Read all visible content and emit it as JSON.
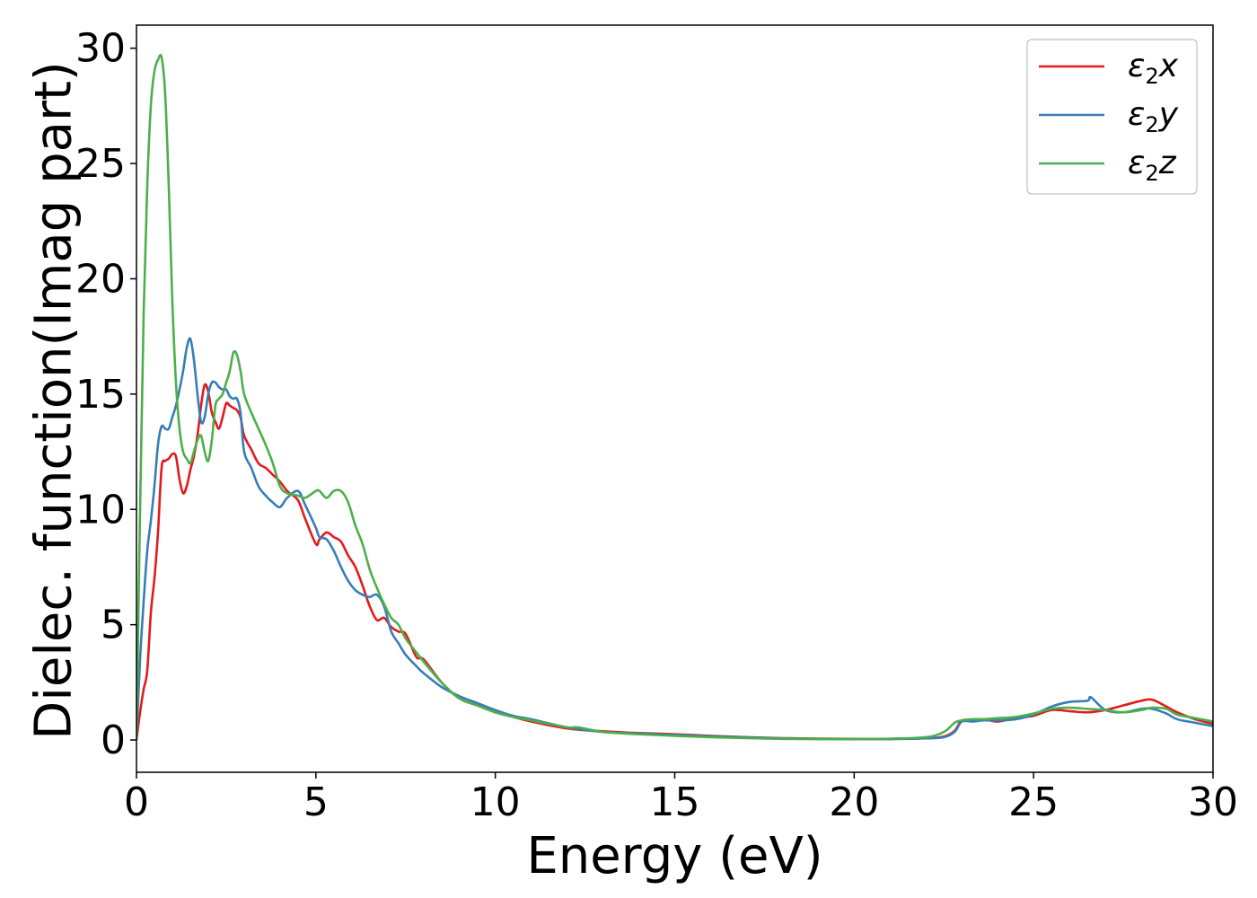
{
  "chart_data": {
    "type": "line",
    "title": "",
    "xlabel": "Energy (eV)",
    "ylabel": "Dielec. function(Imag part)",
    "xlim": [
      0,
      30
    ],
    "ylim": [
      -1.4,
      31
    ],
    "xticks": [
      "0",
      "5",
      "10",
      "15",
      "20",
      "25",
      "30"
    ],
    "yticks": [
      "0",
      "5",
      "10",
      "15",
      "20",
      "25",
      "30"
    ],
    "grid": false,
    "legend_position": "top-right",
    "series": [
      {
        "name": "ε₂x",
        "legend_base": "ε",
        "legend_sub": "2",
        "legend_var": "x",
        "color": "#e41a1c",
        "x": [
          0,
          0.1,
          0.2,
          0.3,
          0.4,
          0.5,
          0.6,
          0.7,
          0.8,
          0.9,
          1.0,
          1.1,
          1.2,
          1.3,
          1.4,
          1.5,
          1.6,
          1.7,
          1.8,
          1.9,
          2.0,
          2.1,
          2.2,
          2.3,
          2.4,
          2.5,
          2.6,
          2.7,
          2.8,
          2.9,
          3.0,
          3.2,
          3.4,
          3.6,
          3.8,
          4.0,
          4.2,
          4.5,
          4.7,
          5.0,
          5.1,
          5.3,
          5.5,
          5.7,
          5.9,
          6.1,
          6.3,
          6.5,
          6.7,
          6.9,
          7.1,
          7.3,
          7.5,
          7.8,
          8.0,
          8.5,
          9.0,
          9.5,
          10,
          10.5,
          11,
          12,
          13,
          14,
          15,
          16,
          17,
          18,
          19,
          20,
          21,
          22,
          22.5,
          22.8,
          23,
          23.3,
          23.6,
          24,
          24.5,
          25,
          25.5,
          26,
          26.5,
          27,
          27.5,
          28,
          28.3,
          28.7,
          29,
          29.5,
          30
        ],
        "y": [
          0,
          1.2,
          2.2,
          3.0,
          5.5,
          7.0,
          9.0,
          11.8,
          12.1,
          12.2,
          12.4,
          12.3,
          11.3,
          10.7,
          11.0,
          11.7,
          12.3,
          13.2,
          14.5,
          15.4,
          15.1,
          14.2,
          13.8,
          13.5,
          14.0,
          14.6,
          14.5,
          14.4,
          14.3,
          14.0,
          13.2,
          12.6,
          12.0,
          11.8,
          11.5,
          11.2,
          10.8,
          10.4,
          9.6,
          8.5,
          8.7,
          9.0,
          8.8,
          8.6,
          8.0,
          7.5,
          6.7,
          5.8,
          5.2,
          5.3,
          4.9,
          4.7,
          4.6,
          3.6,
          3.5,
          2.5,
          1.8,
          1.5,
          1.2,
          1.0,
          0.8,
          0.5,
          0.38,
          0.3,
          0.25,
          0.18,
          0.12,
          0.08,
          0.06,
          0.05,
          0.05,
          0.08,
          0.15,
          0.4,
          0.85,
          0.85,
          0.9,
          0.8,
          0.95,
          1.05,
          1.3,
          1.25,
          1.2,
          1.3,
          1.5,
          1.7,
          1.75,
          1.45,
          1.2,
          0.9,
          0.7
        ]
      },
      {
        "name": "ε₂y",
        "legend_base": "ε",
        "legend_sub": "2",
        "legend_var": "y",
        "color": "#377eb8",
        "x": [
          0,
          0.1,
          0.2,
          0.3,
          0.4,
          0.5,
          0.6,
          0.7,
          0.8,
          0.9,
          1.0,
          1.1,
          1.2,
          1.3,
          1.4,
          1.5,
          1.6,
          1.7,
          1.8,
          1.9,
          2.0,
          2.1,
          2.2,
          2.3,
          2.4,
          2.5,
          2.6,
          2.7,
          2.8,
          2.9,
          3.0,
          3.2,
          3.4,
          3.6,
          3.8,
          4.0,
          4.2,
          4.5,
          4.7,
          5.0,
          5.1,
          5.3,
          5.5,
          5.7,
          5.9,
          6.1,
          6.3,
          6.5,
          6.7,
          6.9,
          7.1,
          7.3,
          7.5,
          7.8,
          8.0,
          8.5,
          9.0,
          9.5,
          10,
          10.5,
          11,
          12,
          13,
          14,
          15,
          16,
          17,
          18,
          19,
          20,
          21,
          22,
          22.5,
          22.8,
          23,
          23.3,
          23.6,
          24,
          24.5,
          25,
          25.5,
          26,
          26.5,
          26.6,
          27,
          27.5,
          28,
          28.3,
          28.7,
          29,
          29.5,
          30
        ],
        "y": [
          0,
          3.5,
          6.0,
          8.2,
          9.5,
          11.0,
          12.8,
          13.6,
          13.5,
          13.5,
          14.0,
          14.5,
          15.2,
          16.0,
          17.0,
          17.4,
          16.5,
          15.0,
          13.8,
          14.0,
          15.0,
          15.5,
          15.5,
          15.3,
          15.2,
          15.2,
          14.9,
          14.8,
          14.8,
          14.2,
          12.5,
          11.8,
          11.0,
          10.6,
          10.3,
          10.1,
          10.5,
          10.8,
          10.2,
          9.2,
          8.8,
          8.7,
          8.2,
          7.5,
          6.9,
          6.5,
          6.3,
          6.2,
          6.3,
          5.8,
          4.7,
          4.2,
          3.7,
          3.2,
          2.9,
          2.3,
          1.9,
          1.6,
          1.3,
          1.05,
          0.9,
          0.55,
          0.35,
          0.28,
          0.22,
          0.16,
          0.11,
          0.07,
          0.05,
          0.04,
          0.04,
          0.07,
          0.12,
          0.35,
          0.8,
          0.8,
          0.85,
          0.85,
          0.9,
          1.1,
          1.45,
          1.65,
          1.7,
          1.85,
          1.3,
          1.2,
          1.35,
          1.35,
          1.15,
          0.9,
          0.75,
          0.6
        ]
      },
      {
        "name": "ε₂z",
        "legend_base": "ε",
        "legend_sub": "2",
        "legend_var": "z",
        "color": "#4daf4a",
        "x": [
          0,
          0.1,
          0.2,
          0.3,
          0.4,
          0.5,
          0.6,
          0.7,
          0.8,
          0.9,
          1.0,
          1.1,
          1.2,
          1.3,
          1.4,
          1.5,
          1.6,
          1.7,
          1.8,
          1.9,
          2.0,
          2.1,
          2.2,
          2.3,
          2.4,
          2.5,
          2.6,
          2.7,
          2.8,
          2.9,
          3.0,
          3.2,
          3.4,
          3.6,
          3.8,
          4.0,
          4.2,
          4.5,
          4.7,
          5.0,
          5.1,
          5.3,
          5.5,
          5.7,
          5.9,
          6.1,
          6.3,
          6.5,
          6.7,
          6.9,
          7.1,
          7.3,
          7.5,
          7.8,
          8.0,
          8.5,
          9.0,
          9.5,
          10,
          10.5,
          11,
          12,
          12.3,
          13,
          14,
          15,
          16,
          17,
          18,
          19,
          20,
          21,
          22,
          22.5,
          22.8,
          23,
          23.3,
          23.6,
          24,
          24.5,
          25,
          25.5,
          26,
          26.5,
          27,
          27.5,
          28,
          28.3,
          28.7,
          29,
          29.5,
          30
        ],
        "y": [
          0,
          10.0,
          18.5,
          24.0,
          27.5,
          29.0,
          29.5,
          29.6,
          28.0,
          24.0,
          19.0,
          15.5,
          13.5,
          12.5,
          12.2,
          12.0,
          12.5,
          13.0,
          13.2,
          12.5,
          12.1,
          13.0,
          14.5,
          14.8,
          15.0,
          15.5,
          16.0,
          16.8,
          16.7,
          16.0,
          15.0,
          14.2,
          13.5,
          12.8,
          12.0,
          11.0,
          10.7,
          10.6,
          10.5,
          10.8,
          10.8,
          10.5,
          10.8,
          10.8,
          10.3,
          9.3,
          8.5,
          7.4,
          6.6,
          5.9,
          5.3,
          5.0,
          4.4,
          3.8,
          3.4,
          2.5,
          1.8,
          1.5,
          1.2,
          1.0,
          0.85,
          0.55,
          0.55,
          0.35,
          0.25,
          0.18,
          0.12,
          0.08,
          0.05,
          0.04,
          0.04,
          0.06,
          0.12,
          0.35,
          0.75,
          0.85,
          0.9,
          0.9,
          0.95,
          1.0,
          1.15,
          1.35,
          1.4,
          1.35,
          1.3,
          1.2,
          1.3,
          1.4,
          1.35,
          1.1,
          0.95,
          0.8
        ]
      }
    ]
  }
}
